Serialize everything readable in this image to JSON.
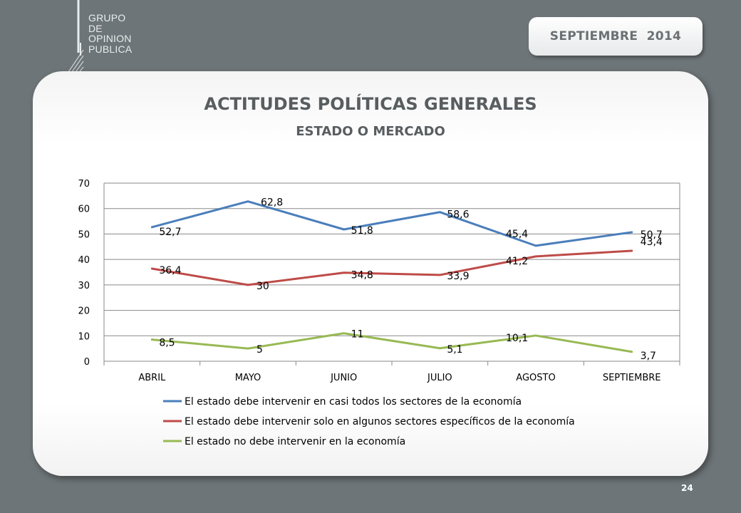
{
  "header": {
    "logo_lines": [
      "GRUPO",
      "DE",
      "OPINION",
      "PUBLICA"
    ],
    "date_badge": "SEPTIEMBRE  2014"
  },
  "footer": {
    "page_number": "24"
  },
  "colors": {
    "series_blue": "#4a7ebb",
    "series_red": "#be4b48",
    "series_green": "#98b954",
    "gridline": "#8a8a8a",
    "text": "#000000"
  },
  "chart_data": {
    "type": "line",
    "title": "ACTITUDES POLÍTICAS GENERALES",
    "subtitle": "ESTADO O MERCADO",
    "categories": [
      "ABRIL",
      "MAYO",
      "JUNIO",
      "JULIO",
      "AGOSTO",
      "SEPTIEMBRE"
    ],
    "ylim": [
      0,
      70
    ],
    "yticks": [
      0,
      10,
      20,
      30,
      40,
      50,
      60,
      70
    ],
    "grid": true,
    "legend_position": "bottom",
    "series": [
      {
        "name": "El estado debe intervenir en casi todos los sectores de la economía",
        "color": "#4a7ebb",
        "values": [
          52.7,
          62.8,
          51.8,
          58.6,
          45.4,
          50.7
        ],
        "labels": [
          "52,7",
          "62,8",
          "51,8",
          "58,6",
          "45,4",
          "50,7"
        ]
      },
      {
        "name": "El estado debe intervenir solo en algunos sectores específicos de la economía",
        "color": "#be4b48",
        "values": [
          36.4,
          30,
          34.8,
          33.9,
          41.2,
          43.4
        ],
        "labels": [
          "36,4",
          "30",
          "34,8",
          "33,9",
          "41,2",
          "43,4"
        ]
      },
      {
        "name": "El estado no debe intervenir en la economía",
        "color": "#98b954",
        "values": [
          8.5,
          5,
          11,
          5.1,
          10.1,
          3.7
        ],
        "labels": [
          "8,5",
          "5",
          "11",
          "5,1",
          "10,1",
          "3,7"
        ]
      }
    ]
  }
}
